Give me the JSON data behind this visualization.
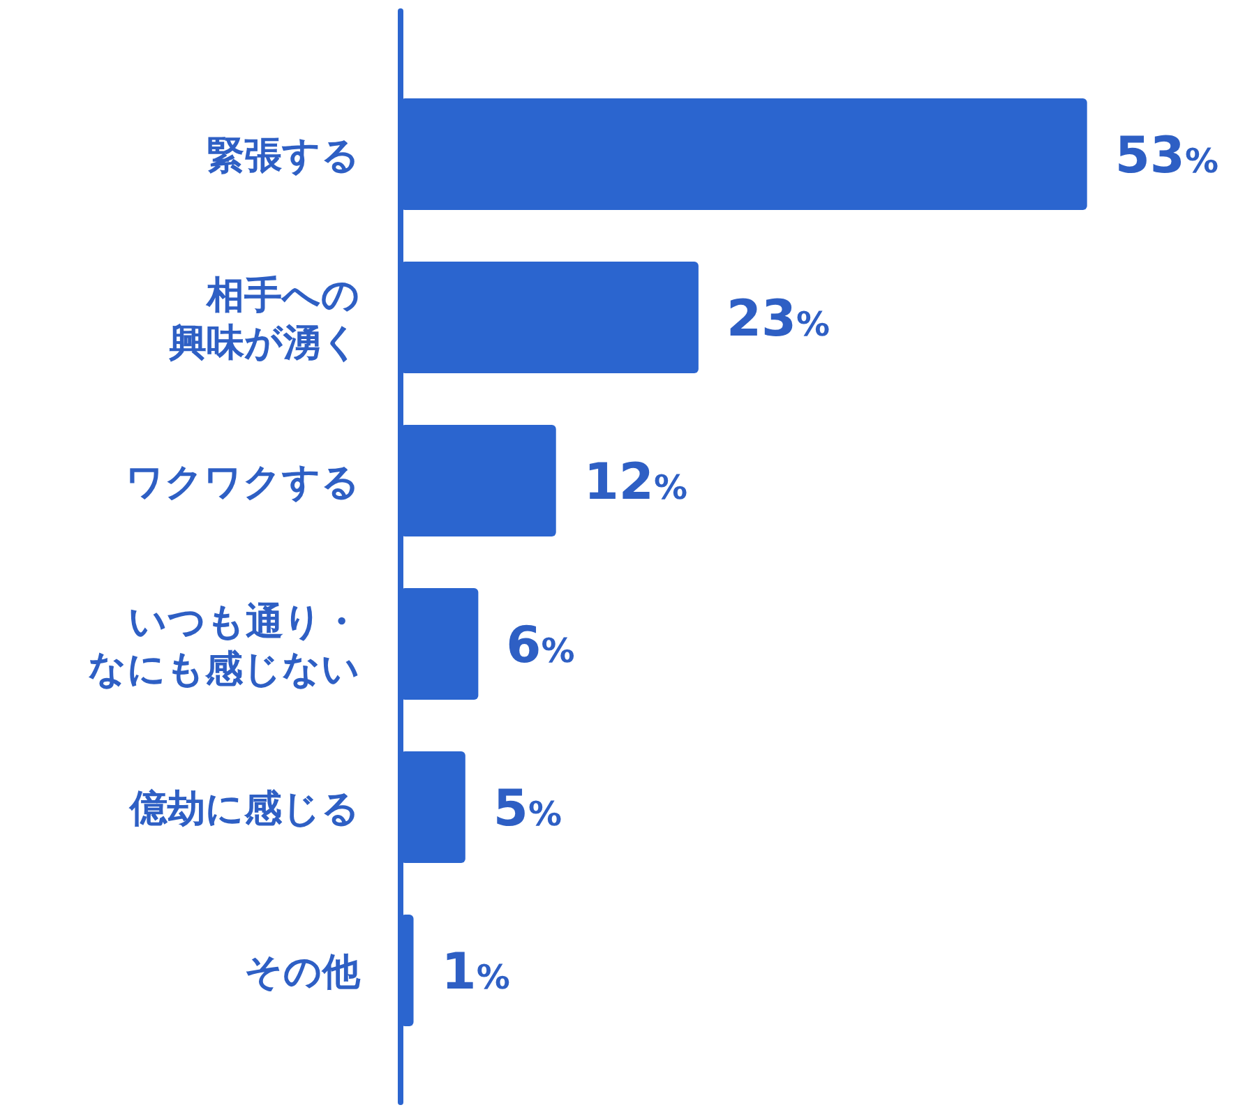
{
  "chart_data": {
    "type": "bar",
    "orientation": "horizontal",
    "categories": [
      "緊張する",
      "相手への興味が湧く",
      "ワクワクする",
      "いつも通り・なにも感じない",
      "億劫に感じる",
      "その他"
    ],
    "values": [
      53,
      23,
      12,
      6,
      5,
      1
    ],
    "value_labels": [
      "53%",
      "23%",
      "12%",
      "6%",
      "5%",
      "1%"
    ],
    "color": "#2b65cf"
  }
}
